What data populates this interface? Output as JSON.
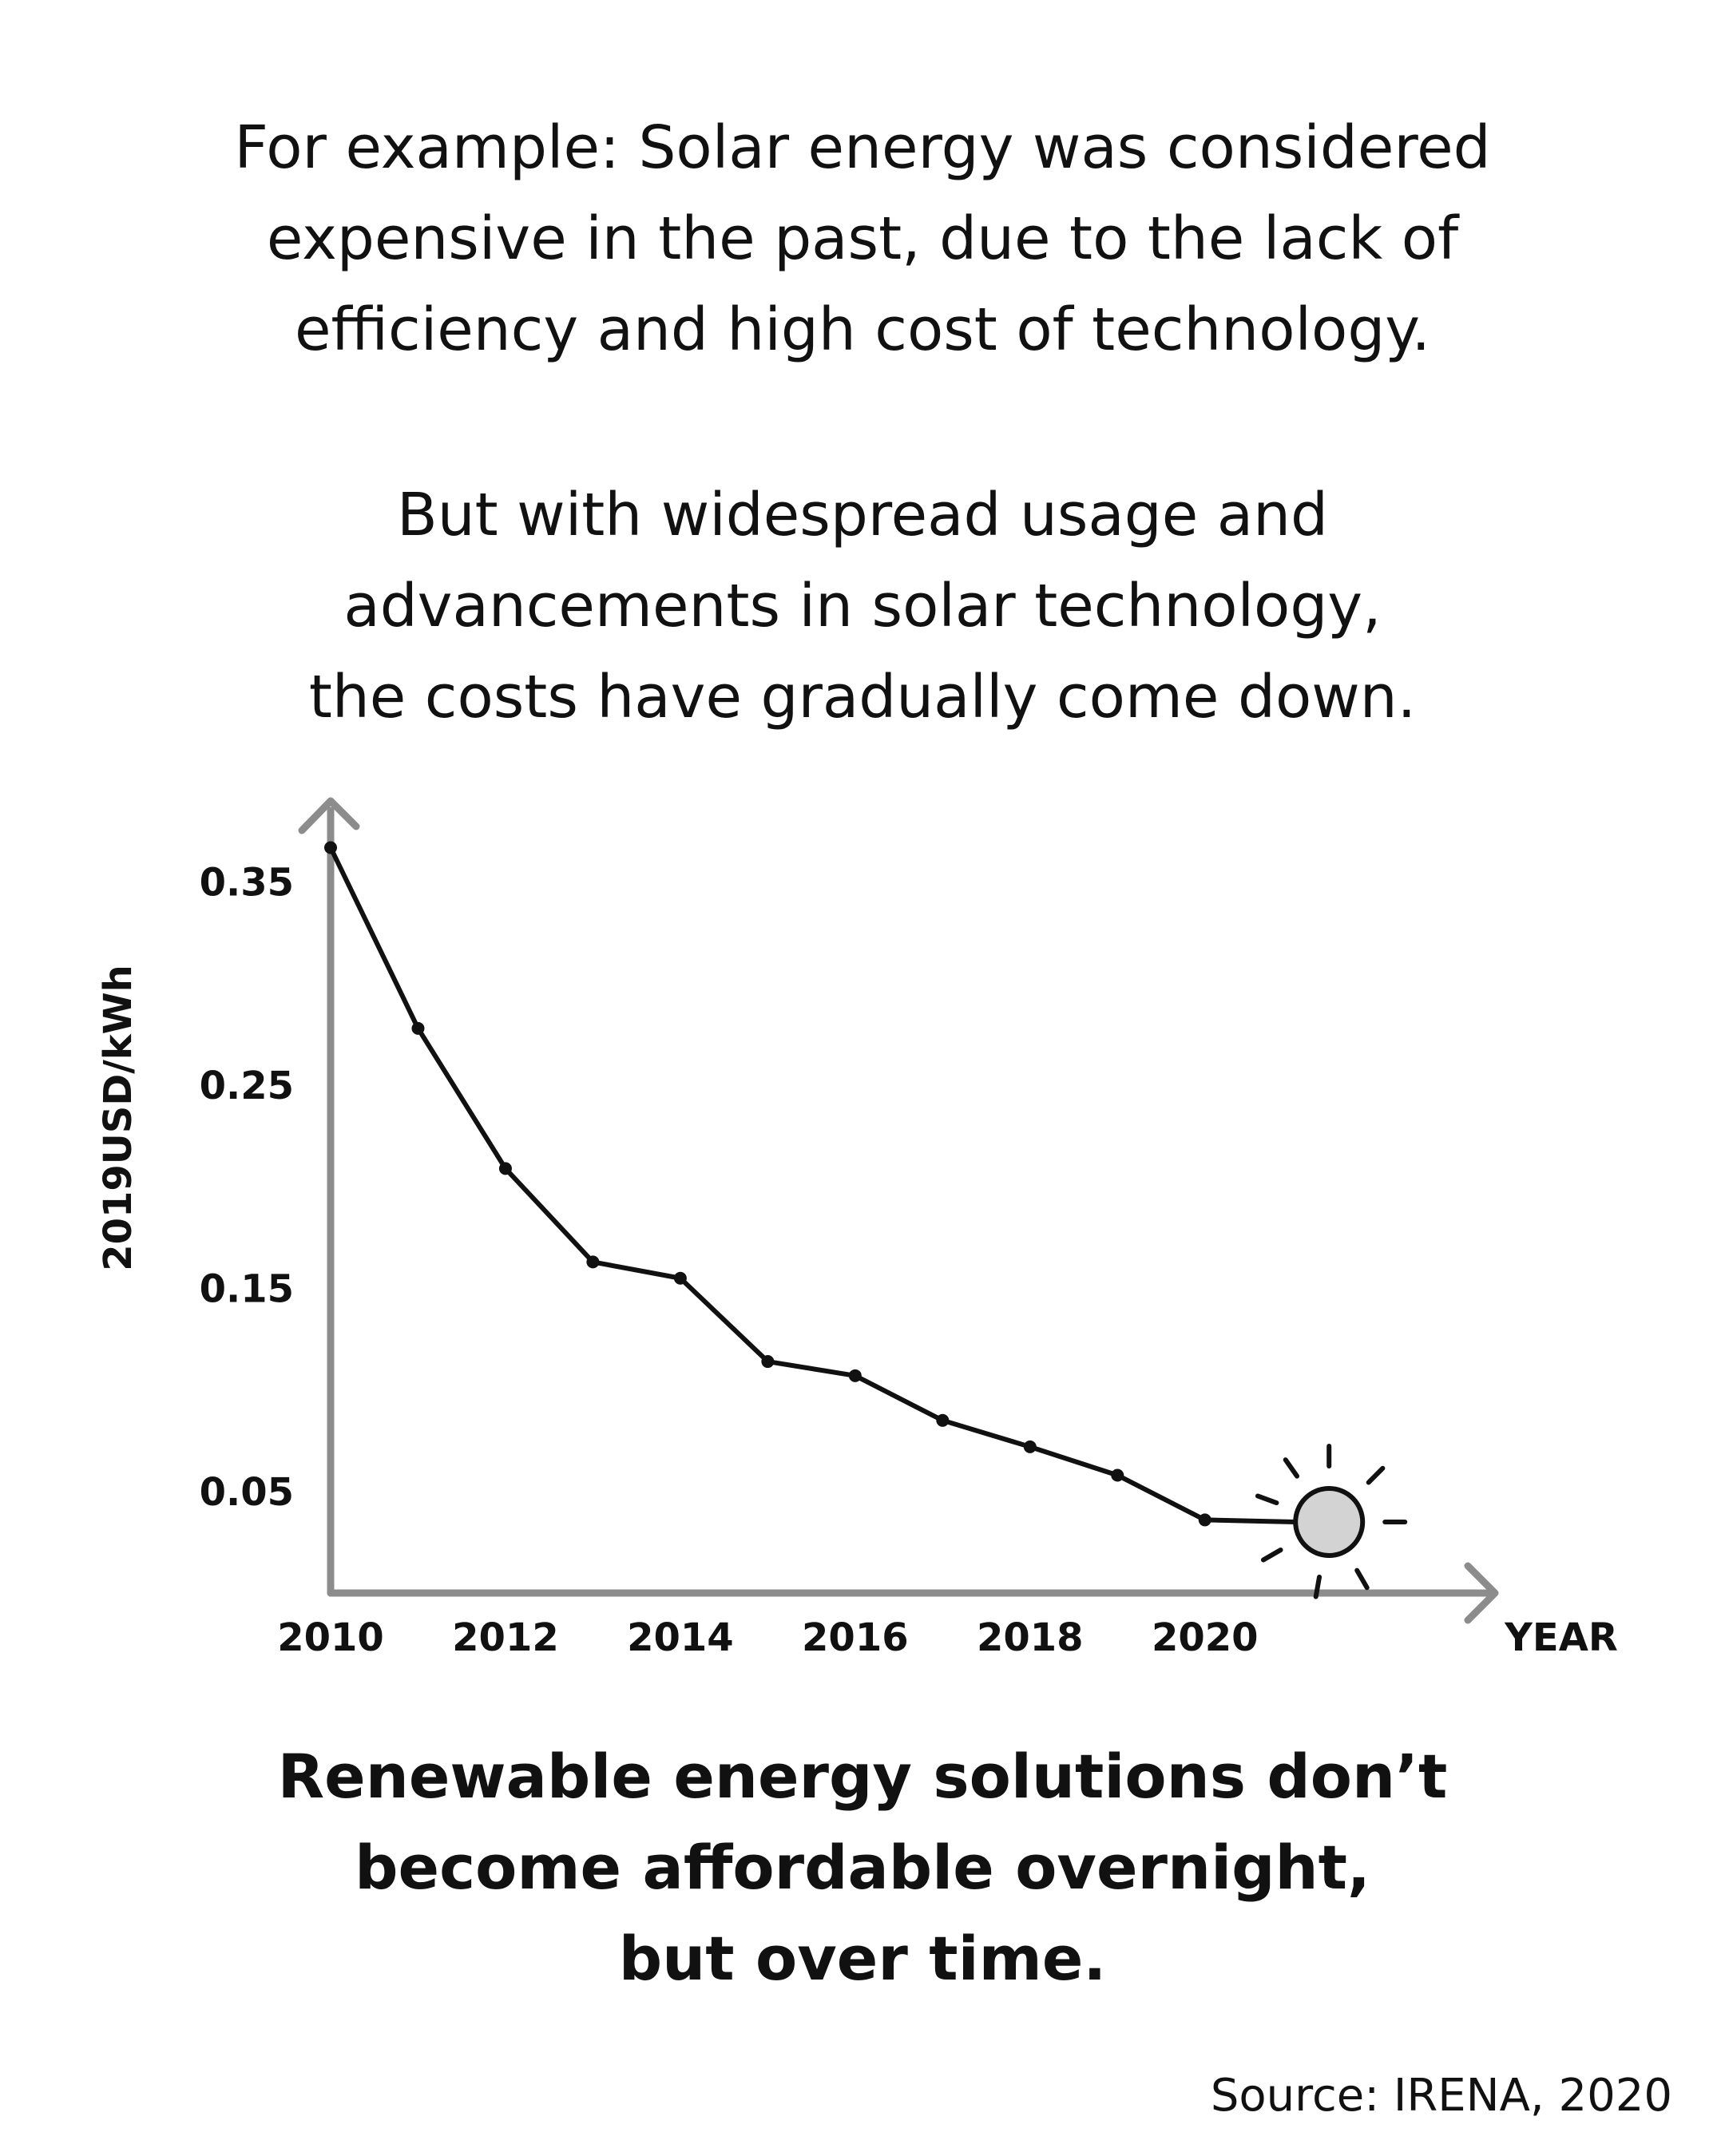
{
  "text": {
    "intro_1": [
      "For example: Solar energy was considered",
      "expensive in the past, due to the lack of",
      "efficiency and high cost of technology."
    ],
    "intro_2": [
      "But with widespread usage and",
      "advancements in solar technology,",
      "the costs have gradually come down."
    ],
    "conclusion": [
      "Renewable energy solutions don’t",
      "become affordable overnight,",
      "but over time."
    ],
    "source": "Source: IRENA, 2020"
  },
  "chart_data": {
    "type": "line",
    "title": "",
    "xlabel": "YEAR",
    "ylabel": "2019USD/kWh",
    "x_ticks": [
      "2010",
      "2012",
      "2014",
      "2016",
      "2018",
      "2020"
    ],
    "y_ticks": [
      "0.35",
      "0.25",
      "0.15",
      "0.05"
    ],
    "xlim": [
      2010,
      2023.3
    ],
    "ylim": [
      0,
      0.39
    ],
    "grid": false,
    "series": [
      {
        "x": [
          2010,
          2011,
          2012,
          2013,
          2014,
          2015,
          2016,
          2017,
          2018,
          2019,
          2020
        ],
        "y": [
          0.367,
          0.278,
          0.209,
          0.163,
          0.155,
          0.114,
          0.107,
          0.085,
          0.072,
          0.058,
          0.036
        ]
      }
    ],
    "end_marker": {
      "x": 2021,
      "y": 0.035,
      "icon": "sun-icon"
    },
    "colors": {
      "axis": "#8c8c8c",
      "line": "#111111",
      "sun_fill": "#d3d3d3"
    }
  }
}
